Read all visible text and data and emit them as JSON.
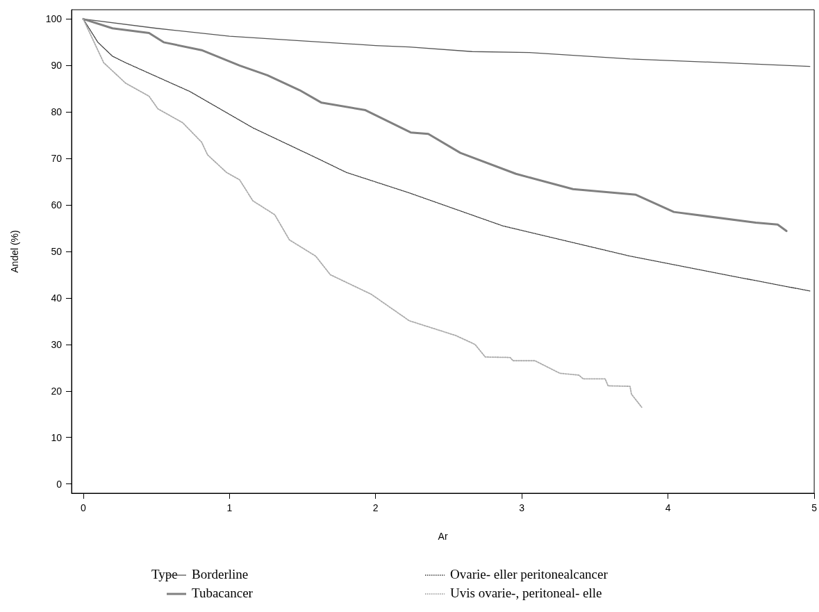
{
  "chart_data": {
    "type": "line",
    "xlabel": "Ar",
    "ylabel": "Andel (%)",
    "legend_title": "Type",
    "legend": "bottom",
    "grid": false,
    "marker": "none",
    "xlim": [
      -0.08,
      5.0
    ],
    "xticks": [
      0,
      1,
      2,
      3,
      4,
      5
    ],
    "ylim": [
      -2,
      102
    ],
    "yticks": [
      0,
      10,
      20,
      30,
      40,
      50,
      60,
      70,
      80,
      90,
      100
    ],
    "series": [
      {
        "name": "Borderline",
        "color": "#555555",
        "line_style": "solid",
        "x": [
          0,
          0.5,
          1,
          1.5,
          2,
          2.23,
          2.66,
          3.05,
          3.74,
          4.39,
          4.97
        ],
        "values": [
          100,
          98,
          96.3,
          95.3,
          94.3,
          94,
          93,
          92.8,
          91.4,
          90.6,
          89.8
        ]
      },
      {
        "name": "Tubacancer",
        "color": "#808080",
        "line_style": "solid",
        "x": [
          0,
          0.2,
          0.45,
          0.55,
          0.81,
          1.07,
          1.26,
          1.48,
          1.63,
          1.93,
          2.24,
          2.36,
          2.58,
          2.96,
          3.35,
          3.78,
          4.04,
          4.6,
          4.75,
          4.81
        ],
        "values": [
          100,
          98,
          97,
          95,
          93.3,
          90,
          87.9,
          84.7,
          82,
          80.4,
          75.6,
          75.3,
          71.2,
          66.7,
          63.4,
          62.2,
          58.5,
          56.2,
          55.8,
          54.4
        ]
      },
      {
        "name": "Ovarie- eller peritonealcancer",
        "color": "#333333",
        "line_style": "dotted",
        "x": [
          0,
          0.1,
          0.2,
          0.29,
          0.73,
          1.16,
          1.59,
          1.8,
          2.23,
          2.87,
          3.74,
          4.39,
          4.97
        ],
        "values": [
          100,
          95,
          92,
          90.6,
          84.4,
          76.6,
          70.2,
          67,
          62.6,
          55.5,
          49,
          45,
          41.5
        ]
      },
      {
        "name": "Uvis ovarie-, peritoneal- elle",
        "color": "#aaaaaa",
        "line_style": "dotted",
        "x": [
          0,
          0.14,
          0.29,
          0.45,
          0.51,
          0.68,
          0.81,
          0.85,
          0.98,
          1.07,
          1.16,
          1.31,
          1.41,
          1.59,
          1.69,
          1.97,
          2.23,
          2.55,
          2.68,
          2.75,
          2.92,
          2.94,
          3.09,
          3.26,
          3.39,
          3.42,
          3.57,
          3.59,
          3.74,
          3.75,
          3.82
        ],
        "values": [
          100,
          90.6,
          86.2,
          83.4,
          80.7,
          77.7,
          73.5,
          70.8,
          67,
          65.4,
          60.9,
          57.9,
          52.5,
          49,
          45,
          40.8,
          35.1,
          31.9,
          30,
          27.3,
          27.2,
          26.5,
          26.5,
          23.8,
          23.4,
          22.6,
          22.6,
          21.1,
          21,
          19.3,
          16.5
        ]
      }
    ]
  }
}
